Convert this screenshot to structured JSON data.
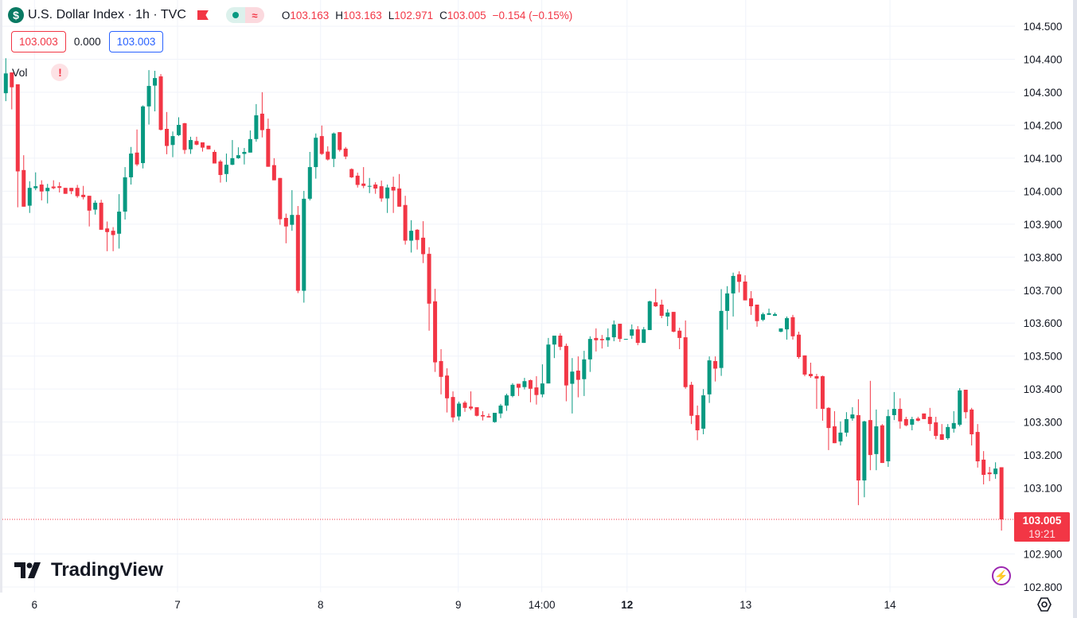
{
  "header": {
    "symbol_icon": "$",
    "title": "U.S. Dollar Index · 1h · TVC",
    "market_status_icon": "green-dot",
    "data_delay_icon": "≈",
    "ohlc": {
      "o_label": "O",
      "o": "103.163",
      "h_label": "H",
      "h": "103.163",
      "l_label": "L",
      "l": "102.971",
      "c_label": "C",
      "c": "103.005",
      "change": "−0.154 (−0.15%)"
    }
  },
  "trade": {
    "sell": "103.003",
    "spread": "0.000",
    "buy": "103.003"
  },
  "volume": {
    "label": "Vol",
    "warning": "!"
  },
  "logo": "TradingView",
  "last_price": {
    "price": "103.005",
    "countdown": "19:21"
  },
  "colors": {
    "up": "#089981",
    "down": "#f23645",
    "grid": "#f0f3fa"
  },
  "chart_data": {
    "type": "candlestick",
    "title": "U.S. Dollar Index · 1h · TVC",
    "ylim": [
      102.8,
      104.5
    ],
    "y_ticks": [
      "104.500",
      "104.400",
      "104.300",
      "104.200",
      "104.100",
      "104.000",
      "103.900",
      "103.800",
      "103.700",
      "103.600",
      "103.500",
      "103.400",
      "103.300",
      "103.200",
      "103.100",
      "102.900",
      "102.800"
    ],
    "y_tick_values": [
      104.5,
      104.4,
      104.3,
      104.2,
      104.1,
      104.0,
      103.9,
      103.8,
      103.7,
      103.6,
      103.5,
      103.4,
      103.3,
      103.2,
      103.1,
      102.9,
      102.8
    ],
    "x_ticks": [
      {
        "label": "6",
        "candle": 4.8,
        "bold": false
      },
      {
        "label": "7",
        "candle": 28.8,
        "bold": false
      },
      {
        "label": "8",
        "candle": 52.8,
        "bold": false
      },
      {
        "label": "9",
        "candle": 75.9,
        "bold": false
      },
      {
        "label": "14:00",
        "candle": 89.9,
        "bold": false
      },
      {
        "label": "12",
        "candle": 104.2,
        "bold": true
      },
      {
        "label": "13",
        "candle": 124.1,
        "bold": false
      },
      {
        "label": "14",
        "candle": 148.3,
        "bold": false
      }
    ],
    "last_price": 103.005,
    "candles_ohlc": [
      [
        104.297,
        104.403,
        104.273,
        104.357
      ],
      [
        104.36,
        104.36,
        104.248,
        104.315
      ],
      [
        104.324,
        104.324,
        103.951,
        104.06
      ],
      [
        104.064,
        104.109,
        103.953,
        103.953
      ],
      [
        103.956,
        104.03,
        103.934,
        104.01
      ],
      [
        104.009,
        104.057,
        104.003,
        104.015
      ],
      [
        104.02,
        104.033,
        103.972,
        103.999
      ],
      [
        104.0,
        104.022,
        103.963,
        104.01
      ],
      [
        104.014,
        104.033,
        104.006,
        104.009
      ],
      [
        104.015,
        104.027,
        103.996,
        104.01
      ],
      [
        104.01,
        104.01,
        103.992,
        103.992
      ],
      [
        104.01,
        104.01,
        103.991,
        104.0
      ],
      [
        104.01,
        104.019,
        103.98,
        103.985
      ],
      [
        103.989,
        104.016,
        103.975,
        103.982
      ],
      [
        103.986,
        103.986,
        103.893,
        103.941
      ],
      [
        103.944,
        103.972,
        103.929,
        103.965
      ],
      [
        103.965,
        103.974,
        103.883,
        103.883
      ],
      [
        103.887,
        103.908,
        103.818,
        103.876
      ],
      [
        103.88,
        103.891,
        103.818,
        103.867
      ],
      [
        103.871,
        103.991,
        103.826,
        103.938
      ],
      [
        103.938,
        104.073,
        103.914,
        104.042
      ],
      [
        104.042,
        104.134,
        104.02,
        104.114
      ],
      [
        104.117,
        104.187,
        104.076,
        104.081
      ],
      [
        104.085,
        104.26,
        104.069,
        104.257
      ],
      [
        104.257,
        104.367,
        104.202,
        104.319
      ],
      [
        104.32,
        104.365,
        104.242,
        104.343
      ],
      [
        104.348,
        104.355,
        104.184,
        104.186
      ],
      [
        104.189,
        104.24,
        104.112,
        104.137
      ],
      [
        104.14,
        104.181,
        104.103,
        104.167
      ],
      [
        104.17,
        104.224,
        104.167,
        104.201
      ],
      [
        104.206,
        104.207,
        104.113,
        104.125
      ],
      [
        104.127,
        104.165,
        104.113,
        104.155
      ],
      [
        104.152,
        104.165,
        104.139,
        104.141
      ],
      [
        104.148,
        104.148,
        104.12,
        104.132
      ],
      [
        104.138,
        104.138,
        104.127,
        104.127
      ],
      [
        104.119,
        104.125,
        104.084,
        104.084
      ],
      [
        104.09,
        104.095,
        104.026,
        104.049
      ],
      [
        104.052,
        104.114,
        104.028,
        104.08
      ],
      [
        104.08,
        104.155,
        104.079,
        104.1
      ],
      [
        104.1,
        104.133,
        104.098,
        104.109
      ],
      [
        104.113,
        104.131,
        104.081,
        104.119
      ],
      [
        104.117,
        104.184,
        104.117,
        104.158
      ],
      [
        104.158,
        104.264,
        104.15,
        104.23
      ],
      [
        104.235,
        104.3,
        104.163,
        104.185
      ],
      [
        104.189,
        104.22,
        104.074,
        104.074
      ],
      [
        104.079,
        104.1,
        104.033,
        104.033
      ],
      [
        104.04,
        104.04,
        103.898,
        103.915
      ],
      [
        103.919,
        103.932,
        103.842,
        103.893
      ],
      [
        103.898,
        104.003,
        103.88,
        103.928
      ],
      [
        103.928,
        103.955,
        103.691,
        103.698
      ],
      [
        103.698,
        104.001,
        103.662,
        103.977
      ],
      [
        103.977,
        104.119,
        103.972,
        104.073
      ],
      [
        104.073,
        104.175,
        104.038,
        104.162
      ],
      [
        104.167,
        104.199,
        104.11,
        104.113
      ],
      [
        104.12,
        104.136,
        104.093,
        104.096
      ],
      [
        104.098,
        104.178,
        104.073,
        104.175
      ],
      [
        104.179,
        104.179,
        104.12,
        104.125
      ],
      [
        104.129,
        104.134,
        104.097,
        104.105
      ],
      [
        104.067,
        104.069,
        104.04,
        104.042
      ],
      [
        104.047,
        104.056,
        104.011,
        104.019
      ],
      [
        104.023,
        104.073,
        104.009,
        104.016
      ],
      [
        104.015,
        104.04,
        103.994,
        104.016
      ],
      [
        104.02,
        104.027,
        103.992,
        104.008
      ],
      [
        104.015,
        104.032,
        103.968,
        103.978
      ],
      [
        103.978,
        104.02,
        103.934,
        104.011
      ],
      [
        104.013,
        104.044,
        103.934,
        104.002
      ],
      [
        104.008,
        104.052,
        103.953,
        103.953
      ],
      [
        103.958,
        103.986,
        103.838,
        103.85
      ],
      [
        103.85,
        103.912,
        103.814,
        103.88
      ],
      [
        103.883,
        103.885,
        103.823,
        103.852
      ],
      [
        103.859,
        103.909,
        103.782,
        103.809
      ],
      [
        103.81,
        103.83,
        103.577,
        103.659
      ],
      [
        103.666,
        103.704,
        103.452,
        103.481
      ],
      [
        103.485,
        103.521,
        103.384,
        103.437
      ],
      [
        103.441,
        103.463,
        103.329,
        103.372
      ],
      [
        103.376,
        103.393,
        103.3,
        103.314
      ],
      [
        103.317,
        103.362,
        103.305,
        103.356
      ],
      [
        103.359,
        103.364,
        103.331,
        103.343
      ],
      [
        103.347,
        103.393,
        103.336,
        103.341
      ],
      [
        103.345,
        103.345,
        103.317,
        103.319
      ],
      [
        103.321,
        103.333,
        103.305,
        103.317
      ],
      [
        103.318,
        103.326,
        103.314,
        103.314
      ],
      [
        103.3,
        103.328,
        103.298,
        103.328
      ],
      [
        103.326,
        103.355,
        103.312,
        103.35
      ],
      [
        103.35,
        103.386,
        103.334,
        103.381
      ],
      [
        103.379,
        103.418,
        103.375,
        103.413
      ],
      [
        103.416,
        103.416,
        103.379,
        103.404
      ],
      [
        103.406,
        103.434,
        103.399,
        103.424
      ],
      [
        103.427,
        103.429,
        103.36,
        103.401
      ],
      [
        103.405,
        103.439,
        103.353,
        103.382
      ],
      [
        103.384,
        103.475,
        103.375,
        103.417
      ],
      [
        103.417,
        103.555,
        103.417,
        103.535
      ],
      [
        103.535,
        103.562,
        103.494,
        103.562
      ],
      [
        103.562,
        103.569,
        103.518,
        103.528
      ],
      [
        103.531,
        103.538,
        103.363,
        103.411
      ],
      [
        103.416,
        103.494,
        103.326,
        103.453
      ],
      [
        103.456,
        103.499,
        103.375,
        103.428
      ],
      [
        103.43,
        103.516,
        103.379,
        103.49
      ],
      [
        103.49,
        103.56,
        103.452,
        103.552
      ],
      [
        103.555,
        103.584,
        103.514,
        103.548
      ],
      [
        103.552,
        103.564,
        103.523,
        103.548
      ],
      [
        103.548,
        103.584,
        103.528,
        103.557
      ],
      [
        103.557,
        103.608,
        103.545,
        103.596
      ],
      [
        103.598,
        103.598,
        103.543,
        103.552
      ],
      [
        103.55,
        103.552,
        103.55,
        103.552
      ],
      [
        103.562,
        103.596,
        103.552,
        103.581
      ],
      [
        103.581,
        103.591,
        103.533,
        103.54
      ],
      [
        103.54,
        103.588,
        103.54,
        103.581
      ],
      [
        103.579,
        103.668,
        103.579,
        103.666
      ],
      [
        103.663,
        103.704,
        103.649,
        103.651
      ],
      [
        103.656,
        103.671,
        103.615,
        103.622
      ],
      [
        103.62,
        103.642,
        103.591,
        103.632
      ],
      [
        103.634,
        103.634,
        103.572,
        103.574
      ],
      [
        103.577,
        103.586,
        103.521,
        103.555
      ],
      [
        103.557,
        103.608,
        103.401,
        103.406
      ],
      [
        103.413,
        103.422,
        103.294,
        103.319
      ],
      [
        103.321,
        103.35,
        103.245,
        103.275
      ],
      [
        103.28,
        103.4,
        103.263,
        103.381
      ],
      [
        103.384,
        103.499,
        103.358,
        103.487
      ],
      [
        103.485,
        103.499,
        103.423,
        103.462
      ],
      [
        103.464,
        103.703,
        103.44,
        103.637
      ],
      [
        103.637,
        103.712,
        103.58,
        103.69
      ],
      [
        103.69,
        103.753,
        103.62,
        103.743
      ],
      [
        103.748,
        103.757,
        103.693,
        103.725
      ],
      [
        103.726,
        103.745,
        103.669,
        103.669
      ],
      [
        103.675,
        103.697,
        103.625,
        103.651
      ],
      [
        103.656,
        103.656,
        103.589,
        103.606
      ],
      [
        103.61,
        103.632,
        103.606,
        103.627
      ],
      [
        103.625,
        103.644,
        103.625,
        103.63
      ],
      [
        103.622,
        103.632,
        103.622,
        103.627
      ],
      [
        103.574,
        103.584,
        103.572,
        103.584
      ],
      [
        103.581,
        103.62,
        103.55,
        103.615
      ],
      [
        103.618,
        103.625,
        103.55,
        103.56
      ],
      [
        103.565,
        103.574,
        103.492,
        103.497
      ],
      [
        103.502,
        103.502,
        103.439,
        103.444
      ],
      [
        103.446,
        103.48,
        103.434,
        103.439
      ],
      [
        103.439,
        103.446,
        103.34,
        103.432
      ],
      [
        103.439,
        103.441,
        103.304,
        103.34
      ],
      [
        103.343,
        103.345,
        103.215,
        103.282
      ],
      [
        103.287,
        103.333,
        103.236,
        103.236
      ],
      [
        103.241,
        103.302,
        103.229,
        103.268
      ],
      [
        103.268,
        103.33,
        103.256,
        103.309
      ],
      [
        103.311,
        103.345,
        103.304,
        103.323
      ],
      [
        103.321,
        103.369,
        103.048,
        103.123
      ],
      [
        103.123,
        103.304,
        103.072,
        103.302
      ],
      [
        103.306,
        103.425,
        103.154,
        103.2
      ],
      [
        103.203,
        103.338,
        103.154,
        103.287
      ],
      [
        103.29,
        103.294,
        103.176,
        103.176
      ],
      [
        103.181,
        103.338,
        103.164,
        103.318
      ],
      [
        103.321,
        103.391,
        103.306,
        103.34
      ],
      [
        103.34,
        103.372,
        103.28,
        103.302
      ],
      [
        103.309,
        103.316,
        103.287,
        103.29
      ],
      [
        103.292,
        103.316,
        103.275,
        103.309
      ],
      [
        103.311,
        103.316,
        103.302,
        103.304
      ],
      [
        103.326,
        103.326,
        103.309,
        103.309
      ],
      [
        103.316,
        103.343,
        103.273,
        103.294
      ],
      [
        103.299,
        103.316,
        103.248,
        103.258
      ],
      [
        103.263,
        103.294,
        103.246,
        103.246
      ],
      [
        103.251,
        103.294,
        103.246,
        103.285
      ],
      [
        103.28,
        103.333,
        103.268,
        103.297
      ],
      [
        103.292,
        103.403,
        103.287,
        103.396
      ],
      [
        103.398,
        103.398,
        103.311,
        103.33
      ],
      [
        103.338,
        103.343,
        103.229,
        103.263
      ],
      [
        103.27,
        103.294,
        103.162,
        103.181
      ],
      [
        103.186,
        103.212,
        103.111,
        103.14
      ],
      [
        103.147,
        103.164,
        103.121,
        103.142
      ],
      [
        103.142,
        103.178,
        103.128,
        103.159
      ],
      [
        103.163,
        103.163,
        102.971,
        103.005
      ]
    ]
  }
}
